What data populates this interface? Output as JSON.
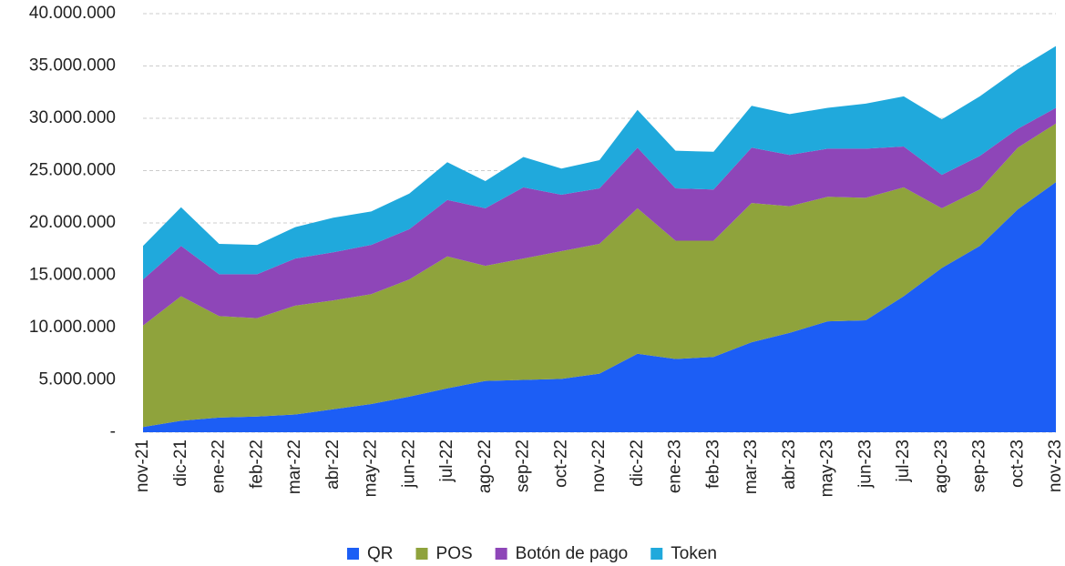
{
  "chart_data": {
    "type": "stacked-area",
    "categories": [
      "nov-21",
      "dic-21",
      "ene-22",
      "feb-22",
      "mar-22",
      "abr-22",
      "may-22",
      "jun-22",
      "jul-22",
      "ago-22",
      "sep-22",
      "oct-22",
      "nov-22",
      "dic-22",
      "ene-23",
      "feb-23",
      "mar-23",
      "abr-23",
      "may-23",
      "jun-23",
      "jul-23",
      "ago-23",
      "sep-23",
      "oct-23",
      "nov-23"
    ],
    "series": [
      {
        "name": "QR",
        "color": "#1c5ef5",
        "values": [
          500000,
          1100000,
          1400000,
          1500000,
          1700000,
          2200000,
          2700000,
          3400000,
          4200000,
          4900000,
          5000000,
          5100000,
          5600000,
          7500000,
          7000000,
          7200000,
          8600000,
          9500000,
          10600000,
          10700000,
          13000000,
          15700000,
          17800000,
          21300000,
          23900000
        ]
      },
      {
        "name": "POS",
        "color": "#8fa33c",
        "values": [
          9700000,
          11900000,
          9700000,
          9400000,
          10400000,
          10400000,
          10500000,
          11200000,
          12600000,
          11000000,
          11600000,
          12200000,
          12400000,
          13900000,
          11300000,
          11100000,
          13300000,
          12100000,
          11900000,
          11700000,
          10400000,
          5700000,
          5400000,
          5900000,
          5600000
        ]
      },
      {
        "name": "Botón de pago",
        "color": "#8e46b8",
        "values": [
          4400000,
          4800000,
          4000000,
          4200000,
          4500000,
          4600000,
          4700000,
          4800000,
          5400000,
          5500000,
          6800000,
          5400000,
          5300000,
          5800000,
          5000000,
          4900000,
          5300000,
          4900000,
          4600000,
          4700000,
          3900000,
          3200000,
          3200000,
          1800000,
          1500000
        ]
      },
      {
        "name": "Token",
        "color": "#20a9dc",
        "values": [
          3200000,
          3700000,
          2900000,
          2800000,
          3000000,
          3300000,
          3200000,
          3400000,
          3600000,
          2600000,
          2900000,
          2500000,
          2700000,
          3600000,
          3600000,
          3600000,
          4000000,
          3900000,
          3900000,
          4300000,
          4800000,
          5300000,
          5700000,
          5700000,
          5900000
        ]
      }
    ],
    "ylim": [
      0,
      40000000
    ],
    "yticks": [
      {
        "value": 0,
        "label": "-"
      },
      {
        "value": 5000000,
        "label": "5.000.000"
      },
      {
        "value": 10000000,
        "label": "10.000.000"
      },
      {
        "value": 15000000,
        "label": "15.000.000"
      },
      {
        "value": 20000000,
        "label": "20.000.000"
      },
      {
        "value": 25000000,
        "label": "25.000.000"
      },
      {
        "value": 30000000,
        "label": "30.000.000"
      },
      {
        "value": 35000000,
        "label": "35.000.000"
      },
      {
        "value": 40000000,
        "label": "40.000.000"
      }
    ],
    "grid": true,
    "legend": "bottom"
  }
}
